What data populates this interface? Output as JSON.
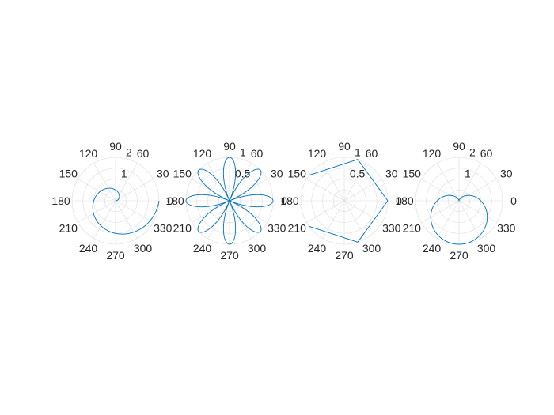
{
  "chart_data": [
    {
      "type": "line",
      "coordinate_system": "polar",
      "curve": "archimedean spiral, r = theta / pi, theta from 0 to 2*pi",
      "theta_deg": [
        0,
        15,
        30,
        45,
        60,
        75,
        90,
        105,
        120,
        135,
        150,
        165,
        180,
        195,
        210,
        225,
        240,
        255,
        270,
        285,
        300,
        315,
        330,
        345,
        360
      ],
      "r": [
        0,
        0.083,
        0.167,
        0.25,
        0.333,
        0.417,
        0.5,
        0.583,
        0.667,
        0.75,
        0.833,
        0.917,
        1.0,
        1.083,
        1.167,
        1.25,
        1.333,
        1.417,
        1.5,
        1.583,
        1.667,
        1.75,
        1.833,
        1.917,
        2.0
      ],
      "rlim": [
        0,
        2
      ],
      "rticks": [
        1,
        2
      ],
      "rtick_labels": [
        "1",
        "2"
      ],
      "angle_ticks": [
        "0",
        "30",
        "60",
        "90",
        "120",
        "150",
        "180",
        "210",
        "240",
        "270",
        "300",
        "330"
      ],
      "grid": true,
      "line_color": "#0072BD"
    },
    {
      "type": "line",
      "coordinate_system": "polar",
      "curve": "rose, r = |cos(4*theta)|, 8 petals",
      "theta_deg": [
        0,
        11.25,
        22.5,
        33.75,
        45,
        56.25,
        67.5,
        78.75,
        90
      ],
      "r": [
        1.0,
        0.707,
        0.0,
        0.707,
        1.0,
        0.707,
        0.0,
        0.707,
        1.0
      ],
      "rlim": [
        0,
        1
      ],
      "rticks": [
        0.5,
        1
      ],
      "rtick_labels": [
        "0.5",
        "1"
      ],
      "angle_ticks": [
        "0",
        "30",
        "60",
        "90",
        "120",
        "150",
        "180",
        "210",
        "240",
        "270",
        "300",
        "330"
      ],
      "grid": true,
      "line_color": "#0072BD"
    },
    {
      "type": "line",
      "coordinate_system": "polar",
      "curve": "pentagon, r = 1 at five equally spaced angles",
      "theta_deg": [
        0,
        72,
        144,
        216,
        288,
        360
      ],
      "r": [
        1,
        1,
        1,
        1,
        1,
        1
      ],
      "rlim": [
        0,
        1
      ],
      "rticks": [
        0.5,
        1
      ],
      "rtick_labels": [
        "0.5",
        "1"
      ],
      "angle_ticks": [
        "0",
        "30",
        "60",
        "90",
        "120",
        "150",
        "180",
        "210",
        "240",
        "270",
        "300",
        "330"
      ],
      "grid": true,
      "line_color": "#0072BD"
    },
    {
      "type": "line",
      "coordinate_system": "polar",
      "curve": "cardioid, r = 1 - sin(theta)",
      "theta_deg": [
        0,
        30,
        60,
        90,
        120,
        150,
        180,
        210,
        240,
        270,
        300,
        330,
        360
      ],
      "r": [
        1.0,
        0.5,
        0.134,
        0.0,
        0.134,
        0.5,
        1.0,
        1.5,
        1.866,
        2.0,
        1.866,
        1.5,
        1.0
      ],
      "rlim": [
        0,
        2
      ],
      "rticks": [
        1,
        2
      ],
      "rtick_labels": [
        "1",
        "2"
      ],
      "angle_ticks": [
        "0",
        "30",
        "60",
        "90",
        "120",
        "150",
        "180",
        "210",
        "240",
        "270",
        "300",
        "330"
      ],
      "grid": true,
      "line_color": "#0072BD"
    }
  ]
}
